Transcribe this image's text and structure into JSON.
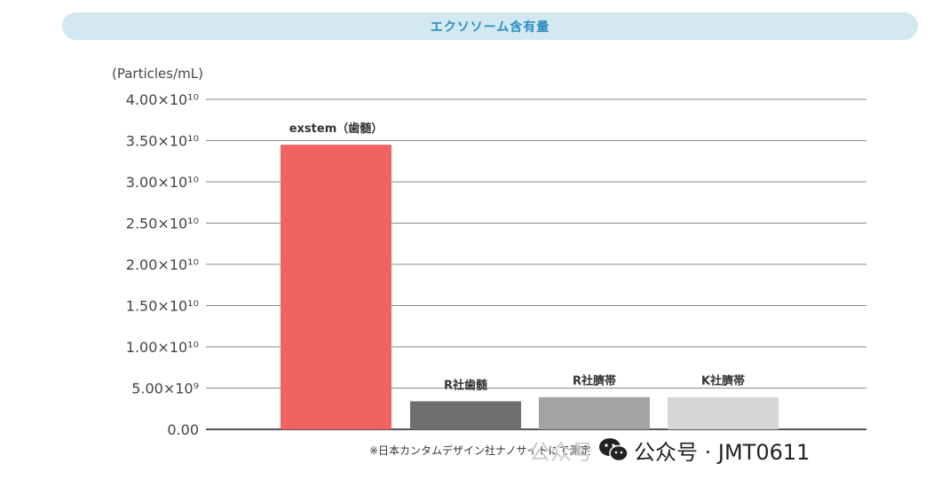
{
  "title": "エクソソーム含有量",
  "chart_data": {
    "type": "bar",
    "ylabel": "(Particles/mL)",
    "ylim": [
      0,
      40000000000
    ],
    "yticks": [
      {
        "value": 0,
        "label": "0.00"
      },
      {
        "value": 5000000000,
        "label": "5.00×10⁹"
      },
      {
        "value": 10000000000,
        "label": "1.00×10¹⁰"
      },
      {
        "value": 15000000000,
        "label": "1.50×10¹⁰"
      },
      {
        "value": 20000000000,
        "label": "2.00×10¹⁰"
      },
      {
        "value": 25000000000,
        "label": "2.50×10¹⁰"
      },
      {
        "value": 30000000000,
        "label": "3.00×10¹⁰"
      },
      {
        "value": 35000000000,
        "label": "3.50×10¹⁰"
      },
      {
        "value": 40000000000,
        "label": "4.00×10¹⁰"
      }
    ],
    "grid": true,
    "categories": [
      "exstem（歯髄）",
      "R社歯髄",
      "R社臍帯",
      "K社臍帯"
    ],
    "values": [
      34500000000,
      3400000000,
      3900000000,
      3900000000
    ],
    "colors": [
      "#ef6461",
      "#6f6f6f",
      "#a3a3a3",
      "#d6d6d6"
    ],
    "footnote": "※日本カンタムデザイン社ナノサイトにて測定"
  },
  "watermark": {
    "ghost_text": "公众号",
    "main_text": "公众号 · JMT0611",
    "icon": "wechat-icon"
  }
}
